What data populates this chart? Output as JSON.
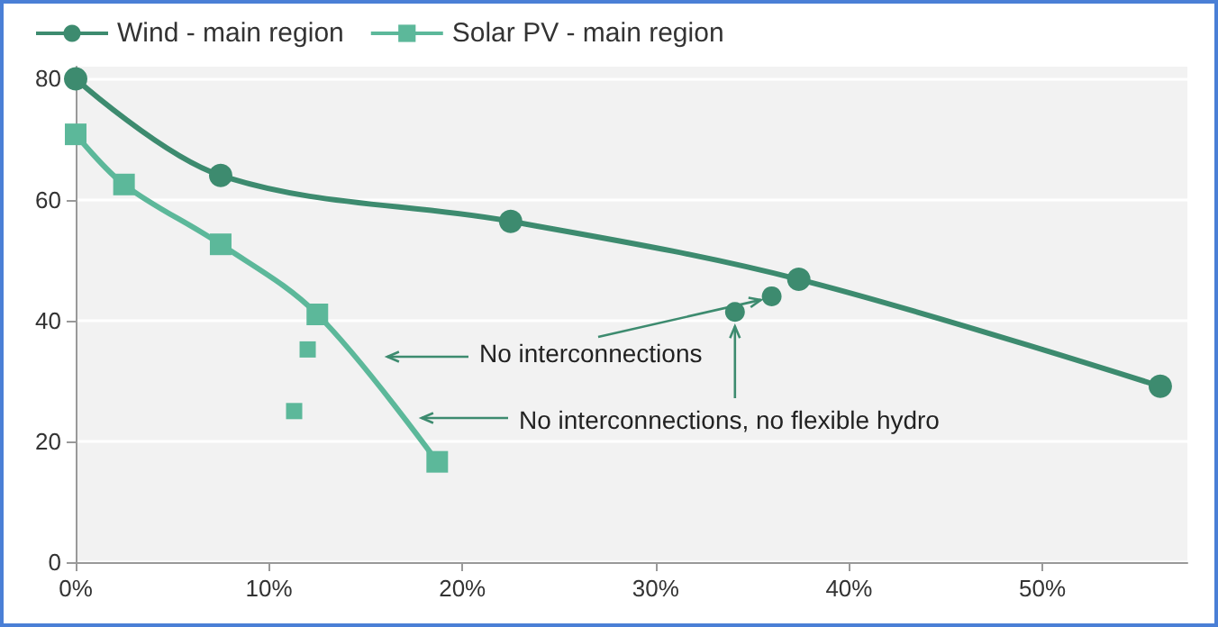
{
  "chart_data": {
    "type": "line",
    "xlim": [
      0,
      57.5
    ],
    "ylim": [
      0,
      82
    ],
    "xticks": [
      {
        "value": 0,
        "label": "0%"
      },
      {
        "value": 10,
        "label": "10%"
      },
      {
        "value": 20,
        "label": "20%"
      },
      {
        "value": 30,
        "label": "30%"
      },
      {
        "value": 40,
        "label": "40%"
      },
      {
        "value": 50,
        "label": "50%"
      }
    ],
    "yticks": [
      0,
      20,
      40,
      60,
      80
    ],
    "series": [
      {
        "name": "Wind - main region",
        "color": "#3d8b6f",
        "marker": "circle",
        "x": [
          0,
          7.5,
          22.5,
          37.4,
          56.1
        ],
        "values": [
          80,
          64,
          56.4,
          46.8,
          29.1
        ]
      },
      {
        "name": "Solar PV - main region",
        "color": "#5cb89a",
        "marker": "square",
        "x": [
          0,
          2.5,
          7.5,
          12.5,
          18.7
        ],
        "values": [
          70.8,
          62.5,
          52.6,
          41,
          16.6
        ]
      },
      {
        "type": "scatter",
        "color": "#3d8b6f",
        "marker": "circle",
        "x": [
          36,
          34.1
        ],
        "values": [
          44,
          41.4
        ]
      },
      {
        "type": "scatter",
        "color": "#5cb89a",
        "marker": "square",
        "x": [
          12,
          11.3
        ],
        "values": [
          35.2,
          25
        ]
      }
    ],
    "annotations": [
      {
        "text": "No interconnections",
        "x": 36,
        "y": 44
      },
      {
        "text": "No interconnections, no flexible hydro",
        "x": 34.1,
        "y": 41.4
      }
    ],
    "grid": "y",
    "legend": "top left"
  }
}
